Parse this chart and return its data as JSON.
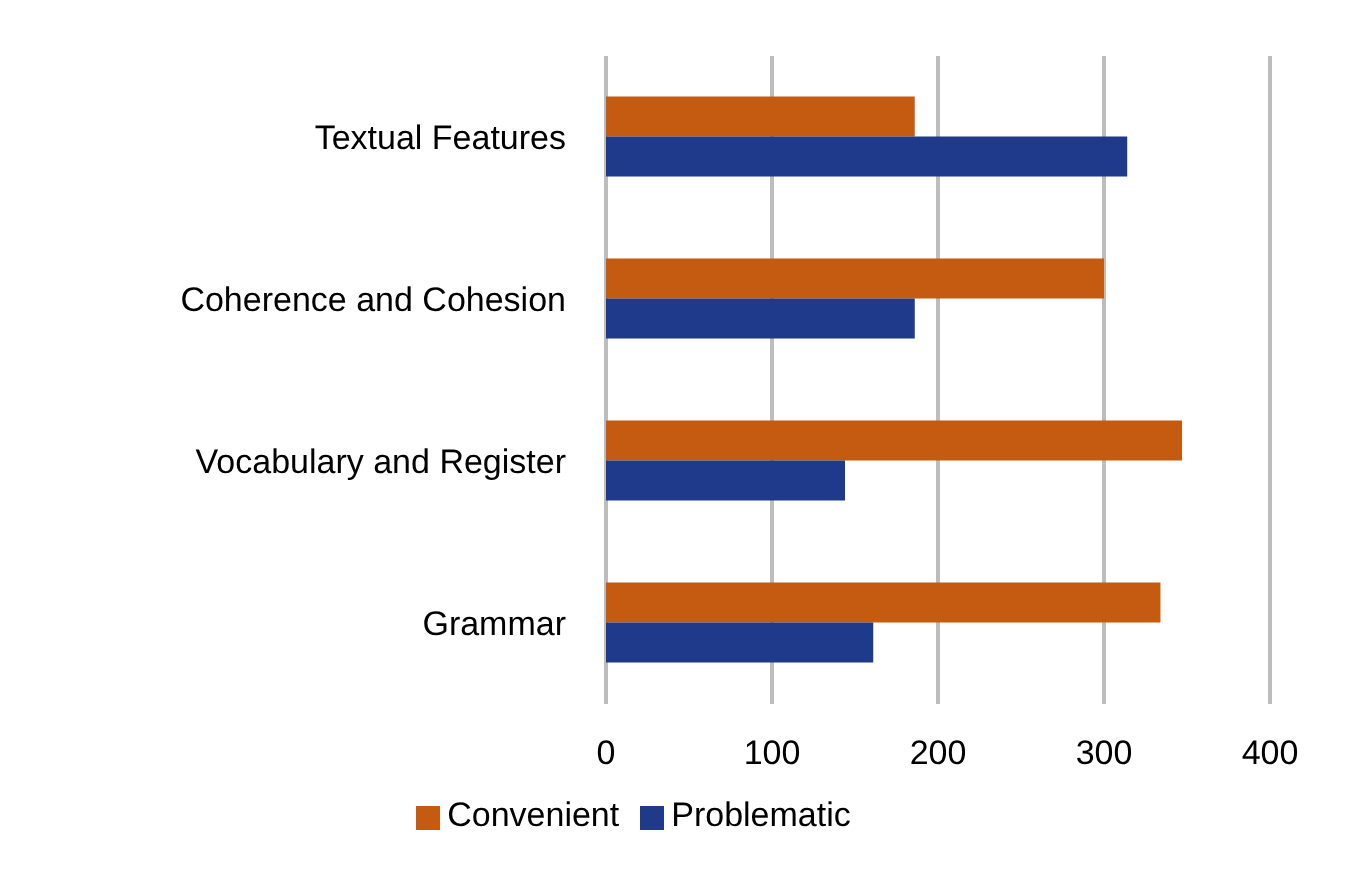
{
  "chart_data": {
    "type": "bar",
    "orientation": "horizontal",
    "categories": [
      "Textual Features",
      "Coherence and Cohesion",
      "Vocabulary and Register",
      "Grammar"
    ],
    "series": [
      {
        "name": "Convenient",
        "color": "#c55a11",
        "values": [
          186,
          300,
          347,
          334
        ]
      },
      {
        "name": "Problematic",
        "color": "#1f3a8a",
        "values": [
          314,
          186,
          144,
          161
        ]
      }
    ],
    "xlim": [
      0,
      400
    ],
    "xticks": [
      0,
      100,
      200,
      300,
      400
    ],
    "grid": "x",
    "legend": "bottom"
  }
}
